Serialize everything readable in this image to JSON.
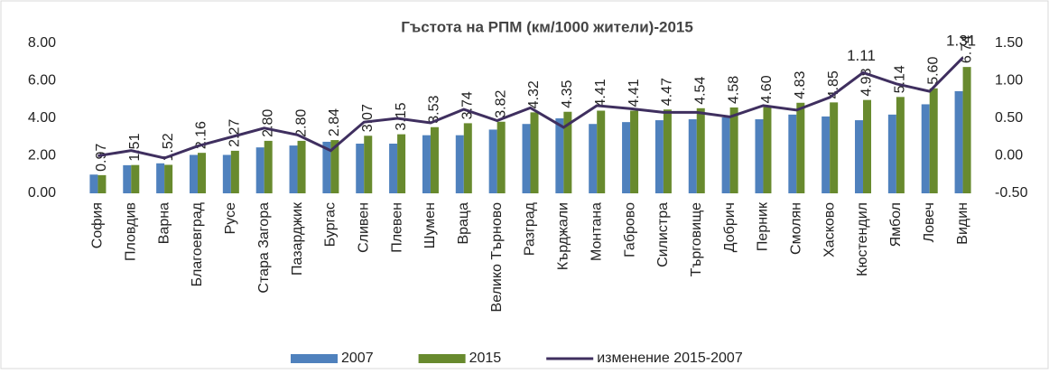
{
  "chart_data": {
    "type": "bar_line",
    "title": "Гъстота на РПМ (км/1000 жители)-2015",
    "categories": [
      "София",
      "Пловдив",
      "Варна",
      "Благоевград",
      "Русе",
      "Стара Загора",
      "Пазарджик",
      "Бургас",
      "Сливен",
      "Плевен",
      "Шумен",
      "Враца",
      "Велико Търново",
      "Разград",
      "Кърджали",
      "Монтана",
      "Габрово",
      "Силистра",
      "Търговище",
      "Добрич",
      "Перник",
      "Смолян",
      "Хасково",
      "Кюстендил",
      "Ямбол",
      "Ловеч",
      "Видин"
    ],
    "series": [
      {
        "name": "2007",
        "type": "bar",
        "color": "#4f81bd",
        "values": [
          1.0,
          1.5,
          1.6,
          2.05,
          2.05,
          2.45,
          2.55,
          2.75,
          2.65,
          2.65,
          3.1,
          3.1,
          3.4,
          3.7,
          4.0,
          3.7,
          3.8,
          3.9,
          3.95,
          4.05,
          3.95,
          4.2,
          4.1,
          3.9,
          4.2,
          4.75,
          5.45
        ]
      },
      {
        "name": "2015",
        "type": "bar",
        "color": "#688a2e",
        "values": [
          0.97,
          1.51,
          1.52,
          2.16,
          2.27,
          2.8,
          2.8,
          2.84,
          3.07,
          3.15,
          3.53,
          3.74,
          3.82,
          4.32,
          4.35,
          4.41,
          4.41,
          4.47,
          4.54,
          4.58,
          4.6,
          4.83,
          4.85,
          4.98,
          5.14,
          5.6,
          6.74
        ],
        "value_labels": [
          "0.97",
          "1.51",
          "1.52",
          "2.16",
          "2.27",
          "2.80",
          "2.80",
          "2.84",
          "3.07",
          "3.15",
          "3.53",
          "3.74",
          "3.82",
          "4.32",
          "4.35",
          "4.41",
          "4.41",
          "4.47",
          "4.54",
          "4.58",
          "4.60",
          "4.83",
          "4.85",
          "4.98",
          "5.14",
          "5.60",
          "6.74"
        ]
      },
      {
        "name": "изменение 2015-2007",
        "type": "line",
        "axis": "y2",
        "color": "#3f2f5f",
        "values": [
          0.0,
          0.07,
          -0.03,
          0.13,
          0.25,
          0.37,
          0.28,
          0.07,
          0.45,
          0.5,
          0.44,
          0.62,
          0.47,
          0.64,
          0.38,
          0.67,
          0.63,
          0.58,
          0.58,
          0.52,
          0.67,
          0.61,
          0.78,
          1.11,
          0.96,
          0.86,
          1.31
        ],
        "value_labels": [
          null,
          null,
          null,
          null,
          null,
          null,
          null,
          null,
          null,
          null,
          null,
          null,
          null,
          null,
          null,
          null,
          null,
          null,
          null,
          null,
          null,
          null,
          null,
          "1.11",
          null,
          null,
          "1.31"
        ]
      }
    ],
    "ylim": [
      0,
      8
    ],
    "yticks": [
      {
        "value": 0,
        "label": "0.00"
      },
      {
        "value": 2,
        "label": "2.00"
      },
      {
        "value": 4,
        "label": "4.00"
      },
      {
        "value": 6,
        "label": "6.00"
      },
      {
        "value": 8,
        "label": "8.00"
      }
    ],
    "y2lim": [
      -0.5,
      1.5
    ],
    "y2ticks": [
      {
        "value": -0.5,
        "label": "-0.50"
      },
      {
        "value": 0,
        "label": "0.00"
      },
      {
        "value": 0.5,
        "label": "0.50"
      },
      {
        "value": 1,
        "label": "1.00"
      },
      {
        "value": 1.5,
        "label": "1.50"
      }
    ],
    "legend": "bottom"
  }
}
